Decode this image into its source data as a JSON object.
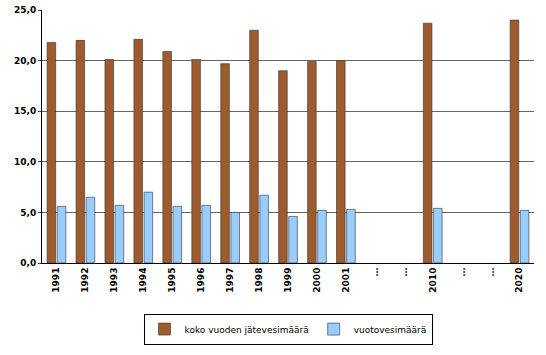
{
  "chart_data": {
    "type": "bar",
    "categories": [
      "1991",
      "1992",
      "1993",
      "1994",
      "1995",
      "1996",
      "1997",
      "1998",
      "1999",
      "2000",
      "2001",
      "…",
      "…",
      "2010",
      "…",
      "…",
      "2020"
    ],
    "series": [
      {
        "name": "koko vuoden jätevesimäärä",
        "color": "#9E5B2E",
        "values": [
          21.8,
          22.0,
          20.1,
          22.1,
          20.9,
          20.1,
          19.7,
          23.0,
          19.0,
          19.9,
          20.0,
          null,
          null,
          23.7,
          null,
          null,
          24.0
        ]
      },
      {
        "name": "vuotovesimäärä",
        "color": "#99CCFF",
        "values": [
          5.6,
          6.5,
          5.7,
          7.0,
          5.6,
          5.7,
          5.0,
          6.7,
          4.6,
          5.2,
          5.3,
          null,
          null,
          5.4,
          null,
          null,
          5.2
        ]
      }
    ],
    "ylim": [
      0,
      25
    ],
    "yticks": [
      {
        "value": 0,
        "label": "0,0"
      },
      {
        "value": 5,
        "label": "5,0"
      },
      {
        "value": 10,
        "label": "10,0"
      },
      {
        "value": 15,
        "label": "15,0"
      },
      {
        "value": 20,
        "label": "20,0"
      },
      {
        "value": 25,
        "label": "25,0"
      }
    ],
    "grid": true,
    "legend": "bottom"
  }
}
